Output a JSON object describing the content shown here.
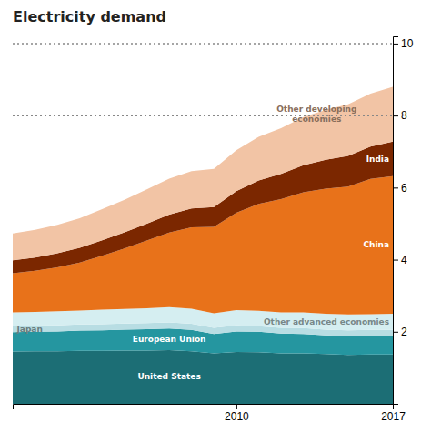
{
  "chart_data": {
    "type": "area",
    "stacked": true,
    "title": "Electricity demand",
    "x": [
      2000,
      2001,
      2002,
      2003,
      2004,
      2005,
      2006,
      2007,
      2008,
      2009,
      2010,
      2011,
      2012,
      2013,
      2014,
      2015,
      2016,
      2017
    ],
    "series": [
      {
        "name": "United States",
        "color": "#1c6e75",
        "values": [
          1.45,
          1.46,
          1.46,
          1.47,
          1.47,
          1.48,
          1.48,
          1.49,
          1.46,
          1.4,
          1.44,
          1.43,
          1.4,
          1.4,
          1.38,
          1.36,
          1.37,
          1.37
        ]
      },
      {
        "name": "European Union",
        "color": "#2596a0",
        "values": [
          0.54,
          0.54,
          0.55,
          0.56,
          0.57,
          0.58,
          0.59,
          0.6,
          0.59,
          0.54,
          0.57,
          0.57,
          0.55,
          0.54,
          0.52,
          0.52,
          0.52,
          0.52
        ]
      },
      {
        "name": "Japan",
        "color": "#b8dde3",
        "values": [
          0.17,
          0.17,
          0.17,
          0.17,
          0.17,
          0.17,
          0.17,
          0.17,
          0.17,
          0.17,
          0.17,
          0.15,
          0.16,
          0.16,
          0.16,
          0.16,
          0.16,
          0.16
        ]
      },
      {
        "name": "Other advanced economies",
        "color": "#d5eef1",
        "values": [
          0.38,
          0.38,
          0.39,
          0.39,
          0.4,
          0.4,
          0.41,
          0.42,
          0.42,
          0.4,
          0.42,
          0.43,
          0.43,
          0.44,
          0.44,
          0.44,
          0.44,
          0.45
        ]
      },
      {
        "name": "China",
        "color": "#e8721a",
        "values": [
          1.08,
          1.14,
          1.22,
          1.33,
          1.5,
          1.68,
          1.88,
          2.07,
          2.26,
          2.4,
          2.7,
          2.97,
          3.14,
          3.33,
          3.47,
          3.55,
          3.75,
          3.82
        ]
      },
      {
        "name": "India",
        "color": "#7b2700",
        "values": [
          0.36,
          0.37,
          0.39,
          0.41,
          0.43,
          0.45,
          0.47,
          0.5,
          0.52,
          0.55,
          0.6,
          0.65,
          0.7,
          0.75,
          0.8,
          0.85,
          0.9,
          0.96
        ]
      },
      {
        "name": "Other developing economies",
        "color": "#f2c4a5",
        "values": [
          0.75,
          0.77,
          0.79,
          0.82,
          0.86,
          0.9,
          0.95,
          1.0,
          1.04,
          1.06,
          1.14,
          1.21,
          1.27,
          1.34,
          1.39,
          1.43,
          1.47,
          1.52
        ]
      }
    ],
    "xlim": [
      2000,
      2017
    ],
    "xticks": [
      2010,
      2017
    ],
    "ylim": [
      0,
      10.2
    ],
    "yticks": [
      2,
      4,
      6,
      8,
      10
    ],
    "reference_lines": [
      10.0,
      8.0
    ]
  }
}
